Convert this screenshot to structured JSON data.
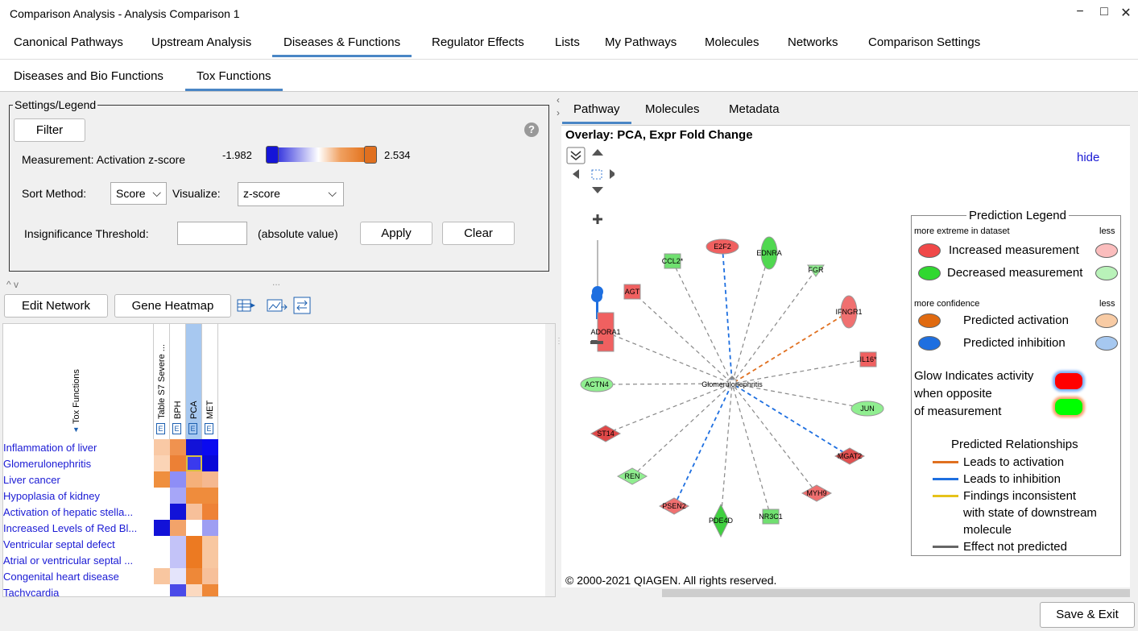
{
  "window": {
    "title": "Comparison Analysis - Analysis Comparison 1",
    "min": "−",
    "max": "□",
    "close": "✕"
  },
  "main_tabs": [
    "Canonical Pathways",
    "Upstream Analysis",
    "Diseases & Functions",
    "Regulator Effects",
    "Lists",
    "My Pathways",
    "Molecules",
    "Networks",
    "Comparison Settings"
  ],
  "sub_tabs": [
    "Diseases and Bio Functions",
    "Tox Functions"
  ],
  "settings": {
    "legend": "Settings/Legend",
    "filter": "Filter",
    "measurement_label": "Measurement: Activation z-score",
    "min": "-1.982",
    "max": "2.534",
    "sort_label": "Sort Method:",
    "sort_value": "Score",
    "visualize_label": "Visualize:",
    "visualize_value": "z-score",
    "threshold_label": "Insignificance Threshold:",
    "threshold_value": "",
    "absolute": "(absolute value)",
    "apply": "Apply",
    "clear": "Clear",
    "help": "?"
  },
  "toolbar": {
    "edit_network": "Edit Network",
    "gene_heatmap": "Gene Heatmap",
    "collapse": "^ v",
    "dots": "..."
  },
  "grid": {
    "row_header": "Tox Functions",
    "columns": [
      "Table S7 Severe ...",
      "BPH",
      "PCA",
      "MET"
    ],
    "col_marker": "E",
    "rows": [
      "Inflammation of liver",
      "Glomerulonephritis",
      "Liver cancer",
      "Hypoplasia of kidney",
      "Activation of hepatic stella...",
      "Increased Levels of Red Bl...",
      "Ventricular septal defect",
      "Atrial or ventricular septal ...",
      "Congenital heart disease",
      "Tachycardia"
    ],
    "colors": [
      [
        "#f9c9a5",
        "#f0924f",
        "#1212d8",
        "#0a0af0"
      ],
      [
        "#fbd4b6",
        "#ec8035",
        "#3a3aee",
        "#0808d8"
      ],
      [
        "#ef8f3e",
        "#8e8ef6",
        "#f5b07a",
        "#f5b890"
      ],
      [
        "#ffffff",
        "#a6a6f8",
        "#ef8c3c",
        "#ef8c3c"
      ],
      [
        "#ffffff",
        "#1212d8",
        "#f7c09a",
        "#ee8236"
      ],
      [
        "#1212d8",
        "#f2a36a",
        "#ffffff",
        "#9e9ef3"
      ],
      [
        "#ffffff",
        "#c3c3f8",
        "#ec7a22",
        "#f8c7a0"
      ],
      [
        "#ffffff",
        "#c3c3f8",
        "#ec7a22",
        "#f8c7a0"
      ],
      [
        "#f8c6a0",
        "#e4e4fb",
        "#ee8838",
        "#f7c09a"
      ],
      [
        "#ffffff",
        "#4a4ae8",
        "#fbd9c0",
        "#ee8838"
      ]
    ]
  },
  "right_tabs": [
    "Pathway",
    "Molecules",
    "Metadata"
  ],
  "overlay": "Overlay: PCA, Expr Fold Change",
  "hide": "hide",
  "copyright": "© 2000-2021 QIAGEN. All rights reserved.",
  "network": {
    "center": "Glomerulonephritis",
    "nodes": [
      "E2F2",
      "EDNRA",
      "CCL2*",
      "FGR",
      "AGT",
      "IFNGR1",
      "ADORA1",
      "IL16*",
      "ACTN4",
      "JUN",
      "ST14",
      "MGAT2",
      "REN",
      "MYH9",
      "PSEN2",
      "PDE4D",
      "NR3C1"
    ]
  },
  "legend": {
    "title": "Prediction Legend",
    "more_extreme": "more extreme in dataset",
    "less": "less",
    "increased": "Increased measurement",
    "decreased": "Decreased measurement",
    "more_confidence": "more confidence",
    "pred_activation": "Predicted activation",
    "pred_inhibition": "Predicted inhibition",
    "glow1": "Glow Indicates activity",
    "glow2": "when opposite",
    "glow3": "of measurement",
    "relationships": "Predicted Relationships",
    "leads_activation": "Leads to activation",
    "leads_inhibition": "Leads to inhibition",
    "findings1": "Findings inconsistent",
    "findings2": "with state of downstream",
    "findings3": "molecule",
    "not_predicted": "Effect not predicted"
  },
  "save_exit": "Save & Exit"
}
